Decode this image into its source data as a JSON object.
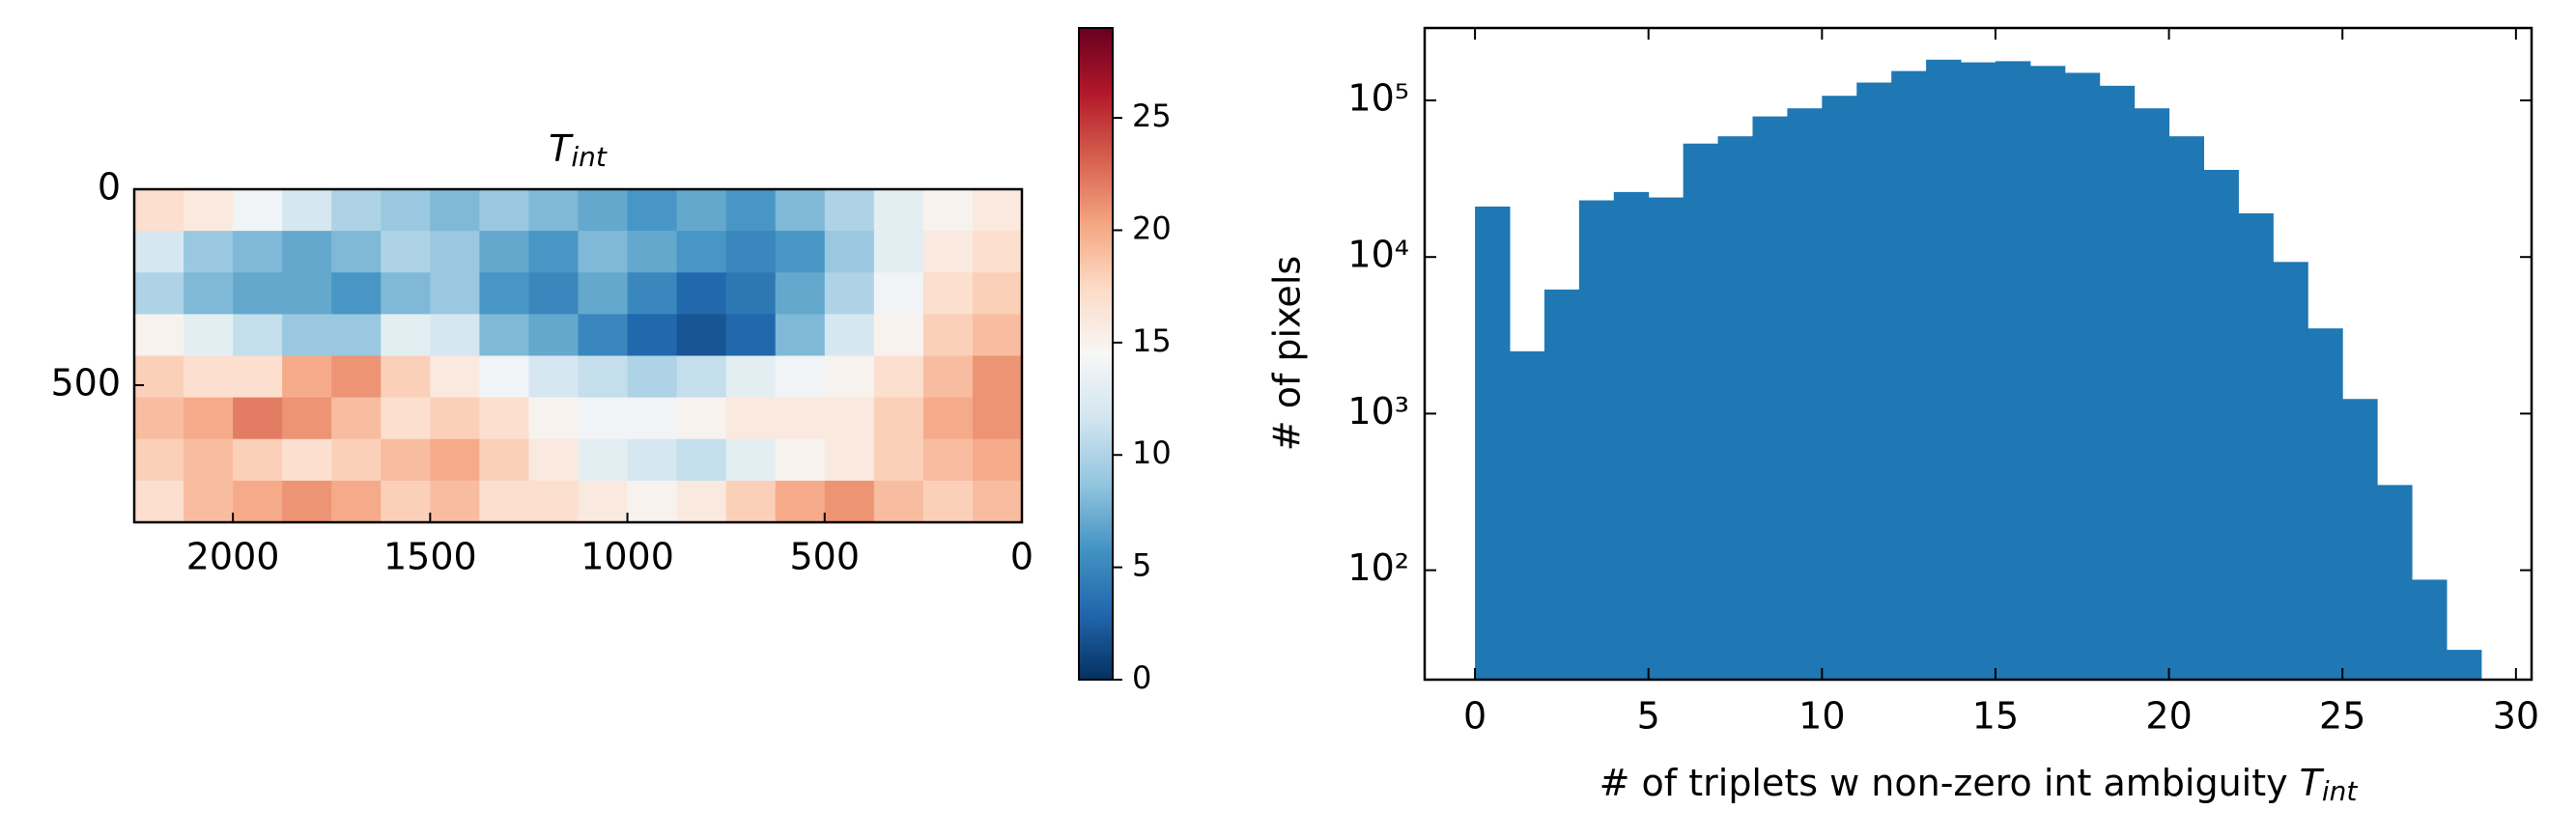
{
  "chart_data": [
    {
      "type": "heatmap",
      "title": "T",
      "title_subscript": "int",
      "xlim": [
        2250,
        0
      ],
      "ylim": [
        850,
        0
      ],
      "xticks": [
        2000,
        1500,
        1000,
        500,
        0
      ],
      "yticks": [
        0,
        500
      ],
      "colormap": "RdBu_r",
      "clim": [
        0,
        29
      ],
      "cticks": [
        0,
        5,
        10,
        15,
        20,
        25
      ],
      "z": [
        [
          17,
          16,
          14,
          12,
          10,
          9,
          8,
          9,
          8,
          7,
          6,
          7,
          6,
          8,
          10,
          13,
          15,
          16
        ],
        [
          12,
          9,
          8,
          7,
          8,
          10,
          9,
          7,
          6,
          8,
          7,
          6,
          5,
          6,
          9,
          13,
          16,
          17
        ],
        [
          10,
          8,
          7,
          7,
          6,
          8,
          9,
          6,
          5,
          7,
          5,
          3,
          4,
          7,
          10,
          14,
          17,
          18
        ],
        [
          15,
          13,
          11,
          9,
          9,
          13,
          12,
          8,
          7,
          5,
          3,
          2,
          3,
          8,
          12,
          15,
          18,
          19
        ],
        [
          18,
          17,
          17,
          20,
          21,
          18,
          16,
          14,
          12,
          11,
          10,
          11,
          13,
          14,
          15,
          17,
          19,
          21
        ],
        [
          19,
          20,
          22,
          21,
          19,
          17,
          18,
          17,
          15,
          14,
          14,
          15,
          16,
          16,
          16,
          18,
          20,
          21
        ],
        [
          18,
          19,
          18,
          17,
          18,
          19,
          20,
          18,
          16,
          13,
          12,
          11,
          13,
          15,
          16,
          18,
          19,
          20
        ],
        [
          17,
          19,
          20,
          21,
          20,
          18,
          19,
          17,
          17,
          16,
          15,
          16,
          18,
          20,
          21,
          19,
          18,
          19
        ]
      ]
    },
    {
      "type": "histogram",
      "color": "#1f77b4",
      "log_y": true,
      "xlabel": "# of triplets w non-zero int ambiguity",
      "xlabel_symbol": "T",
      "xlabel_subscript": "int",
      "ylabel": "# of pixels",
      "bins": [
        0,
        1,
        2,
        3,
        4,
        5,
        6,
        7,
        8,
        9,
        10,
        11,
        12,
        13,
        14,
        15,
        16,
        17,
        18,
        19,
        20,
        21,
        22,
        23,
        24,
        25,
        26,
        27,
        28,
        29
      ],
      "counts": [
        21000,
        2500,
        6200,
        23000,
        26000,
        24000,
        53000,
        59000,
        79000,
        89000,
        107000,
        130000,
        154000,
        182000,
        175000,
        178000,
        166000,
        150000,
        124000,
        89000,
        59000,
        36000,
        19000,
        9300,
        3500,
        1240,
        350,
        87,
        31
      ],
      "xlim": [
        -1.45,
        30.45
      ],
      "ylim": [
        20,
        290000
      ],
      "xticks": [
        0,
        5,
        10,
        15,
        20,
        25,
        30
      ],
      "yticks": [
        {
          "value": 100,
          "label": "10²"
        },
        {
          "value": 1000,
          "label": "10³"
        },
        {
          "value": 10000,
          "label": "10⁴"
        },
        {
          "value": 100000,
          "label": "10⁵"
        }
      ]
    }
  ]
}
